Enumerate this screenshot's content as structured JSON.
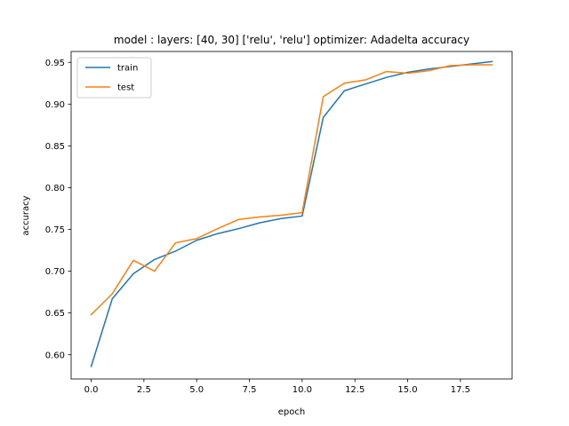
{
  "chart_data": {
    "type": "line",
    "title": "model : layers: [40, 30] ['relu', 'relu'] optimizer: Adadelta accuracy",
    "xlabel": "epoch",
    "ylabel": "accuracy",
    "xlim": [
      -0.95,
      19.95
    ],
    "ylim": [
      0.571,
      0.963
    ],
    "x_ticks": [
      0.0,
      2.5,
      5.0,
      7.5,
      10.0,
      12.5,
      15.0,
      17.5
    ],
    "x_tick_labels": [
      "0.0",
      "2.5",
      "5.0",
      "7.5",
      "10.0",
      "12.5",
      "15.0",
      "17.5"
    ],
    "y_ticks": [
      0.6,
      0.65,
      0.7,
      0.75,
      0.8,
      0.85,
      0.9,
      0.95
    ],
    "y_tick_labels": [
      "0.60",
      "0.65",
      "0.70",
      "0.75",
      "0.80",
      "0.85",
      "0.90",
      "0.95"
    ],
    "grid": false,
    "legend_position": "top-left",
    "x": [
      0,
      1,
      2,
      3,
      4,
      5,
      6,
      7,
      8,
      9,
      10,
      11,
      12,
      13,
      14,
      15,
      16,
      17,
      18,
      19
    ],
    "series": [
      {
        "name": "train",
        "color": "#1f77b4",
        "values": [
          0.586,
          0.667,
          0.697,
          0.714,
          0.724,
          0.737,
          0.745,
          0.751,
          0.758,
          0.763,
          0.766,
          0.884,
          0.916,
          0.924,
          0.932,
          0.938,
          0.942,
          0.945,
          0.948,
          0.951
        ]
      },
      {
        "name": "test",
        "color": "#ff7f0e",
        "values": [
          0.648,
          0.673,
          0.713,
          0.7,
          0.734,
          0.739,
          0.751,
          0.762,
          0.765,
          0.767,
          0.77,
          0.909,
          0.925,
          0.929,
          0.939,
          0.937,
          0.94,
          0.946,
          0.947,
          0.947
        ]
      }
    ]
  }
}
